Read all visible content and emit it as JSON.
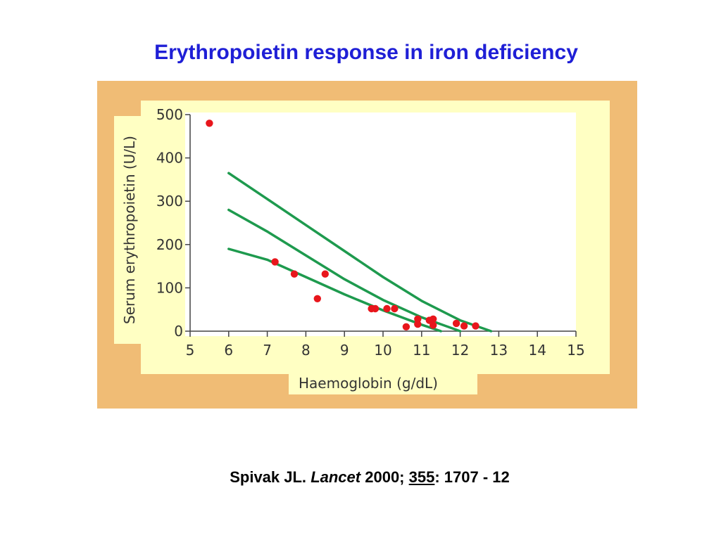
{
  "slide": {
    "title": "Erythropoietin response in iron deficiency",
    "citation": {
      "author": "Spivak JL.",
      "journal": "Lancet",
      "year": "2000;",
      "volume": "355",
      "pages": ": 1707 - 12"
    }
  },
  "colors": {
    "slide_title": "#1f1fd6",
    "frame_background": "#f0bc75",
    "panel_background": "#ffffc3",
    "plot_background": "#ffffff",
    "curve_color": "#1e9a4e",
    "point_color": "#e8161c"
  },
  "chart_data": {
    "type": "scatter",
    "title": "",
    "xlabel": "Haemoglobin (g/dL)",
    "ylabel": "Serum erythropoietin (U/L)",
    "xlim": [
      5,
      15
    ],
    "ylim": [
      0,
      500
    ],
    "x_ticks": [
      "5",
      "6",
      "7",
      "8",
      "9",
      "10",
      "11",
      "12",
      "13",
      "14",
      "15"
    ],
    "y_ticks": [
      "0",
      "100",
      "200",
      "300",
      "400",
      "500"
    ],
    "grid": false,
    "legend": "none",
    "points": [
      {
        "x": 5.5,
        "y": 480
      },
      {
        "x": 7.2,
        "y": 160
      },
      {
        "x": 7.7,
        "y": 132
      },
      {
        "x": 8.3,
        "y": 75
      },
      {
        "x": 8.5,
        "y": 132
      },
      {
        "x": 9.7,
        "y": 52
      },
      {
        "x": 9.8,
        "y": 52
      },
      {
        "x": 10.1,
        "y": 52
      },
      {
        "x": 10.3,
        "y": 52
      },
      {
        "x": 10.6,
        "y": 10
      },
      {
        "x": 10.9,
        "y": 28
      },
      {
        "x": 10.9,
        "y": 16
      },
      {
        "x": 11.2,
        "y": 25
      },
      {
        "x": 11.3,
        "y": 28
      },
      {
        "x": 11.3,
        "y": 14
      },
      {
        "x": 11.9,
        "y": 18
      },
      {
        "x": 12.1,
        "y": 12
      },
      {
        "x": 12.4,
        "y": 12
      }
    ],
    "curves": [
      {
        "x": [
          6.0,
          7.0,
          8.0,
          9.0,
          10.0,
          11.0,
          12.0,
          12.8
        ],
        "y": [
          365,
          305,
          245,
          185,
          125,
          70,
          25,
          0
        ]
      },
      {
        "x": [
          6.0,
          7.0,
          8.0,
          9.0,
          10.0,
          11.0,
          12.0
        ],
        "y": [
          280,
          230,
          175,
          120,
          72,
          32,
          0
        ]
      },
      {
        "x": [
          6.0,
          7.0,
          8.0,
          9.0,
          10.0,
          11.0,
          11.5
        ],
        "y": [
          190,
          165,
          125,
          85,
          48,
          15,
          0
        ]
      }
    ]
  }
}
